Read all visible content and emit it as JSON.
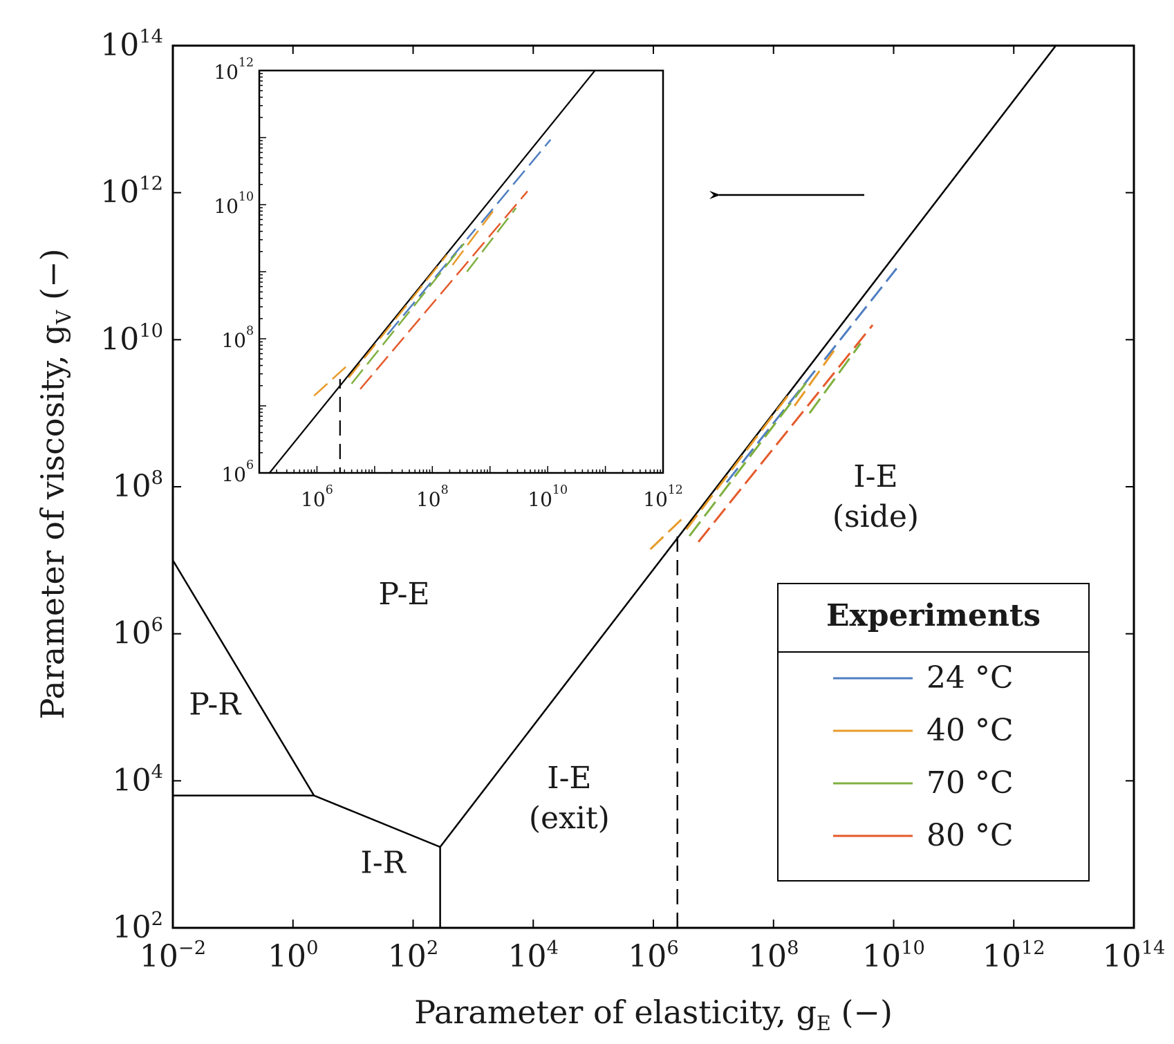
{
  "chart_data": {
    "type": "line",
    "title": "",
    "xlabel": "Parameter of elasticity, g",
    "xlabel_sub": "E",
    "xlabel_suffix": " (−)",
    "ylabel": "Parameter of viscosity, g",
    "ylabel_sub": "V",
    "ylabel_suffix": " (−)",
    "x_scale": "log",
    "y_scale": "log",
    "xlim_exp": [
      -2,
      14
    ],
    "ylim_exp": [
      2,
      14
    ],
    "x_ticks_exp": [
      -2,
      0,
      2,
      4,
      6,
      8,
      10,
      12,
      14
    ],
    "y_ticks_exp": [
      2,
      4,
      6,
      8,
      10,
      12,
      14
    ],
    "grid": false,
    "boundaries": [
      {
        "name": "P-R / P-E boundary",
        "points_exp": [
          [
            -2,
            7.0
          ],
          [
            0.35,
            3.8
          ]
        ]
      },
      {
        "name": "P-R / I-R boundary",
        "points_exp": [
          [
            -2,
            3.8
          ],
          [
            0.35,
            3.8
          ]
        ]
      },
      {
        "name": "I-R / P-E boundary",
        "points_exp": [
          [
            0.35,
            3.8
          ],
          [
            2.45,
            3.1
          ]
        ]
      },
      {
        "name": "I-R / I-E(exit) boundary",
        "points_exp": [
          [
            2.45,
            2.0
          ],
          [
            2.45,
            3.1
          ]
        ]
      },
      {
        "name": "P-E / I-E boundary",
        "points_exp": [
          [
            2.45,
            3.1
          ],
          [
            12.7,
            14.0
          ]
        ]
      },
      {
        "name": "exit / side divider (dashed)",
        "style": "dashed",
        "points_exp": [
          [
            6.4,
            2.0
          ],
          [
            6.4,
            7.4
          ]
        ]
      }
    ],
    "regions": [
      {
        "label": "P-E",
        "position_exp": [
          1.85,
          6.4
        ]
      },
      {
        "label": "P-R",
        "position_exp": [
          -1.3,
          4.9
        ]
      },
      {
        "label": "I-R",
        "position_exp": [
          1.5,
          2.75
        ]
      },
      {
        "label": "I-E",
        "label2": "(exit)",
        "position_exp": [
          4.6,
          3.9
        ]
      },
      {
        "label": "I-E",
        "label2": "(side)",
        "position_exp": [
          9.7,
          8.0
        ]
      }
    ],
    "series": [
      {
        "name": "24 °C",
        "color": "#4f7ec1",
        "segments_exp": [
          [
            [
              7.22,
              8.06
            ],
            [
              8.75,
              9.64
            ]
          ],
          [
            [
              8.85,
              9.73
            ],
            [
              10.05,
              10.97
            ]
          ]
        ]
      },
      {
        "name": "40 °C",
        "color": "#e89b2a",
        "segments_exp": [
          [
            [
              5.95,
              7.15
            ],
            [
              6.55,
              7.62
            ]
          ],
          [
            [
              6.55,
              7.42
            ],
            [
              8.25,
              9.25
            ]
          ],
          [
            [
              8.35,
              9.1
            ],
            [
              9.05,
              9.9
            ]
          ]
        ]
      },
      {
        "name": "70 °C",
        "color": "#7fb040",
        "segments_exp": [
          [
            [
              6.6,
              7.33
            ],
            [
              8.55,
              9.42
            ]
          ],
          [
            [
              8.6,
              9.0
            ],
            [
              9.45,
              9.95
            ]
          ]
        ]
      },
      {
        "name": "80 °C",
        "color": "#e55a2b",
        "segments_exp": [
          [
            [
              6.75,
              7.25
            ],
            [
              9.65,
              10.2
            ]
          ]
        ]
      }
    ],
    "legend": {
      "title": "Experiments",
      "position": "bottom-right"
    },
    "annotation": "arrow pointing left toward inset",
    "inset": {
      "description": "zoom of experimental region",
      "xlim_exp": [
        5,
        12
      ],
      "ylim_exp": [
        6,
        12
      ],
      "x_ticks_exp": [
        6,
        8,
        10,
        12
      ],
      "y_ticks_exp": [
        6,
        8,
        10,
        12
      ]
    }
  }
}
